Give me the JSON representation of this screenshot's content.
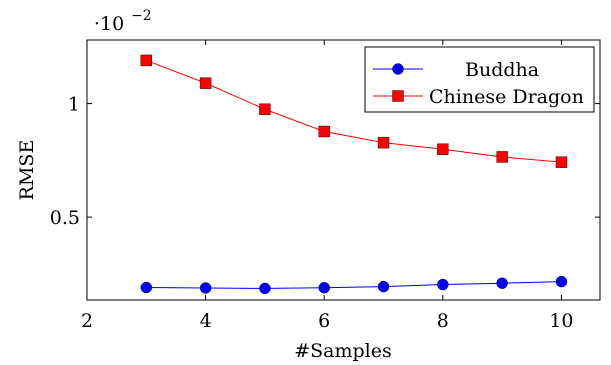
{
  "chart_data": {
    "type": "line",
    "title": "",
    "xlabel": "#Samples",
    "ylabel": "RMSE",
    "y_scale_label": "·10",
    "y_scale_exponent": "−2",
    "xlim": [
      2,
      10.65
    ],
    "ylim": [
      0.135,
      1.28
    ],
    "x": [
      3,
      4,
      5,
      6,
      7,
      8,
      9,
      10
    ],
    "x_ticks": [
      2,
      4,
      6,
      8,
      10
    ],
    "x_tick_labels": [
      "2",
      "4",
      "6",
      "8",
      "10"
    ],
    "y_ticks": [
      0.5,
      1
    ],
    "y_tick_labels": [
      "0.5",
      "1"
    ],
    "grid": false,
    "legend_position": "top-right",
    "series": [
      {
        "name": "Buddha",
        "color": "#0000ff",
        "marker": "circle",
        "values": [
          0.19,
          0.188,
          0.186,
          0.189,
          0.194,
          0.203,
          0.209,
          0.216
        ]
      },
      {
        "name": "Chinese Dragon",
        "color": "#ff0000",
        "marker": "square",
        "values": [
          1.19,
          1.09,
          0.975,
          0.877,
          0.828,
          0.799,
          0.765,
          0.742
        ]
      }
    ]
  }
}
